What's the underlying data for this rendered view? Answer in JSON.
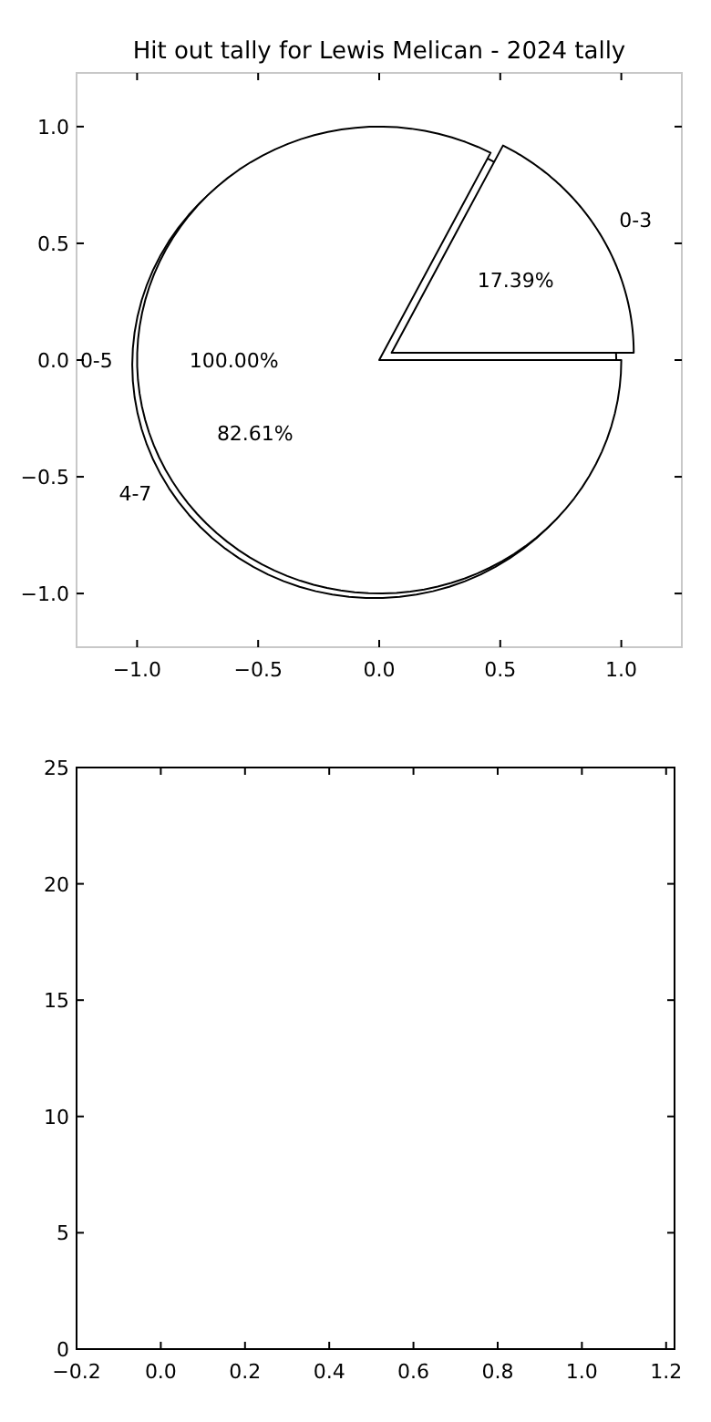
{
  "chart_data": [
    {
      "type": "scatter",
      "title": "Hit out tally for Lewis Melican - 2024 tally",
      "xlim": [
        -1.25,
        1.25
      ],
      "ylim": [
        -1.23,
        1.23
      ],
      "xticks": [
        {
          "value": -1,
          "label": "−1.0"
        },
        {
          "value": -0.5,
          "label": "−0.5"
        },
        {
          "value": 0,
          "label": "0.0"
        },
        {
          "value": 0.5,
          "label": "0.5"
        },
        {
          "value": 1,
          "label": "1.0"
        }
      ],
      "yticks": [
        {
          "value": -1,
          "label": "−1.0"
        },
        {
          "value": -0.5,
          "label": "−0.5"
        },
        {
          "value": 0,
          "label": "0.0"
        },
        {
          "value": 0.5,
          "label": "0.5"
        },
        {
          "value": 1,
          "label": "1.0"
        }
      ]
    },
    {
      "type": "pie",
      "categories": [
        "0-3",
        "4-7"
      ],
      "values": [
        17.39,
        82.61
      ],
      "value_labels": [
        "17.39%",
        "82.61%"
      ],
      "colors": [
        "#ffffff",
        "#ffffff"
      ]
    },
    {
      "type": "pie",
      "categories": [
        "0-5"
      ],
      "values": [
        100
      ],
      "value_labels": [
        "100.00%"
      ],
      "colors": [
        "#ffffff"
      ]
    },
    {
      "type": "bar",
      "xlim": [
        -0.2,
        1.22
      ],
      "ylim": [
        0,
        25
      ],
      "xticks": [
        {
          "value": -0.2,
          "label": "−0.2"
        },
        {
          "value": 0,
          "label": "0.0"
        },
        {
          "value": 0.2,
          "label": "0.2"
        },
        {
          "value": 0.4,
          "label": "0.4"
        },
        {
          "value": 0.6,
          "label": "0.6"
        },
        {
          "value": 0.8,
          "label": "0.8"
        },
        {
          "value": 1,
          "label": "1.0"
        },
        {
          "value": 1.2,
          "label": "1.2"
        }
      ],
      "yticks": [
        {
          "value": 0,
          "label": "0"
        },
        {
          "value": 5,
          "label": "5"
        },
        {
          "value": 10,
          "label": "10"
        },
        {
          "value": 15,
          "label": "15"
        },
        {
          "value": 20,
          "label": "20"
        },
        {
          "value": 25,
          "label": "25"
        }
      ]
    }
  ]
}
